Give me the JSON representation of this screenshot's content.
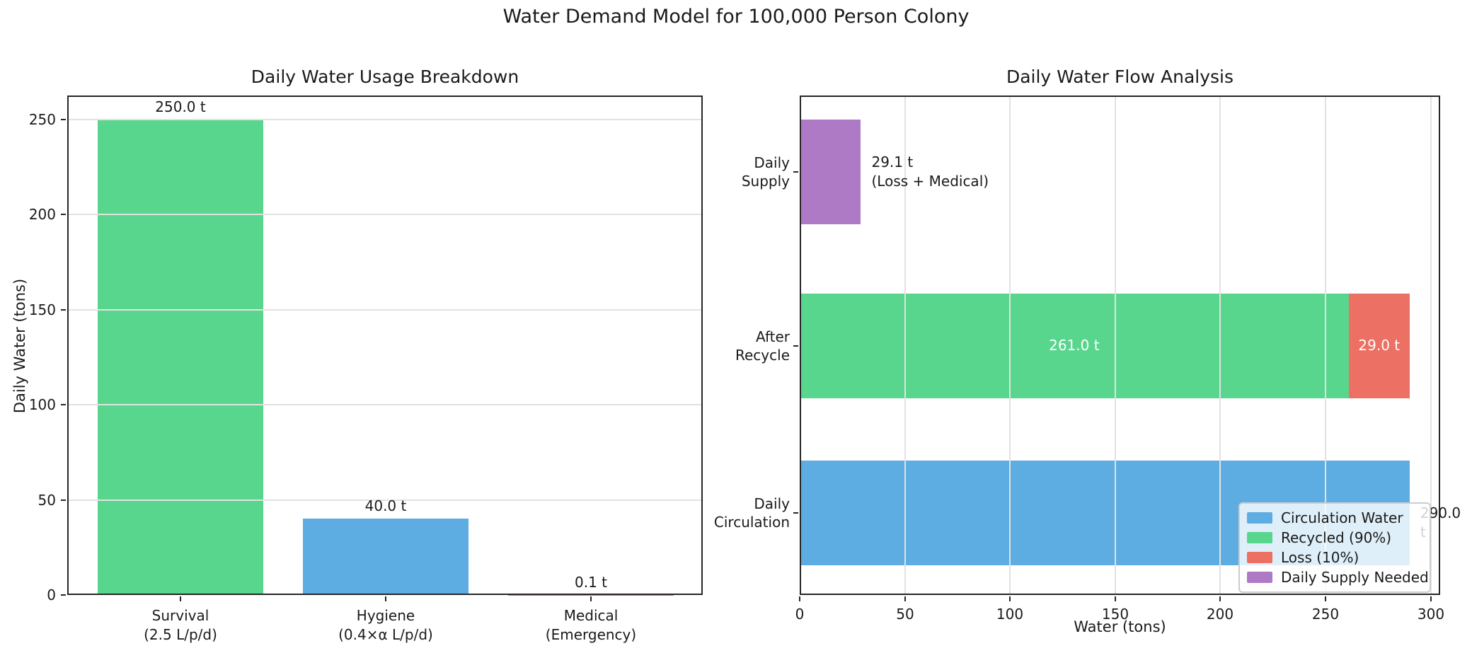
{
  "figure_title": "Water Demand Model for 100,000 Person Colony",
  "palette": {
    "blue": "#5dade2",
    "green": "#58d68d",
    "red": "#ec7063",
    "purple": "#af7ac5",
    "grid": "#e2e2e2",
    "spine": "#262626",
    "text": "#1a1a1a",
    "inside_label_text": "#ffffff",
    "legend_border": "#cccccc"
  },
  "chart_data": [
    {
      "type": "bar",
      "title": "Daily Water Usage Breakdown",
      "ylabel": "Daily Water (tons)",
      "ylim": [
        0,
        262.5
      ],
      "yticks": [
        0,
        50,
        100,
        150,
        200,
        250
      ],
      "grid": "horizontal, light gray, drawn over bars",
      "categories": [
        {
          "name": "survival",
          "lines": [
            "Survival",
            "(2.5 L/p/d)"
          ]
        },
        {
          "name": "hygiene",
          "lines": [
            "Hygiene",
            "(0.4×α L/p/d)"
          ]
        },
        {
          "name": "medical",
          "lines": [
            "Medical",
            "(Emergency)"
          ]
        }
      ],
      "values": [
        250.0,
        40.0,
        0.1
      ],
      "value_labels": [
        "250.0 t",
        "40.0 t",
        "0.1 t"
      ],
      "bar_colors": [
        "green",
        "blue",
        "red"
      ]
    },
    {
      "type": "barh",
      "title": "Daily Water Flow Analysis",
      "xlabel": "Water (tons)",
      "xlim": [
        0,
        304.5
      ],
      "xticks": [
        0,
        50,
        100,
        150,
        200,
        250,
        300
      ],
      "grid": "vertical, light gray, drawn over bars",
      "rows": [
        {
          "name": "daily-supply",
          "label_lines": [
            "Daily",
            "Supply"
          ],
          "segments": [
            {
              "name": "daily-supply-needed",
              "value": 29.1,
              "color": "purple"
            }
          ],
          "outside_label_lines": [
            "29.1 t",
            "(Loss + Medical)"
          ]
        },
        {
          "name": "after-recycle",
          "label_lines": [
            "After",
            "Recycle"
          ],
          "segments": [
            {
              "name": "recycled",
              "value": 261.0,
              "color": "green",
              "inside_label": "261.0 t"
            },
            {
              "name": "loss",
              "value": 29.0,
              "color": "red",
              "inside_label": "29.0 t"
            }
          ]
        },
        {
          "name": "daily-circulation",
          "label_lines": [
            "Daily",
            "Circulation"
          ],
          "segments": [
            {
              "name": "circulation-water",
              "value": 290.0,
              "color": "blue"
            }
          ],
          "outside_label_lines": [
            "290.0 t"
          ]
        }
      ],
      "legend": {
        "position": "lower right",
        "items": [
          {
            "label": "Circulation Water",
            "color": "blue"
          },
          {
            "label": "Recycled (90%)",
            "color": "green"
          },
          {
            "label": "Loss (10%)",
            "color": "red"
          },
          {
            "label": "Daily Supply Needed",
            "color": "purple"
          }
        ]
      }
    }
  ]
}
